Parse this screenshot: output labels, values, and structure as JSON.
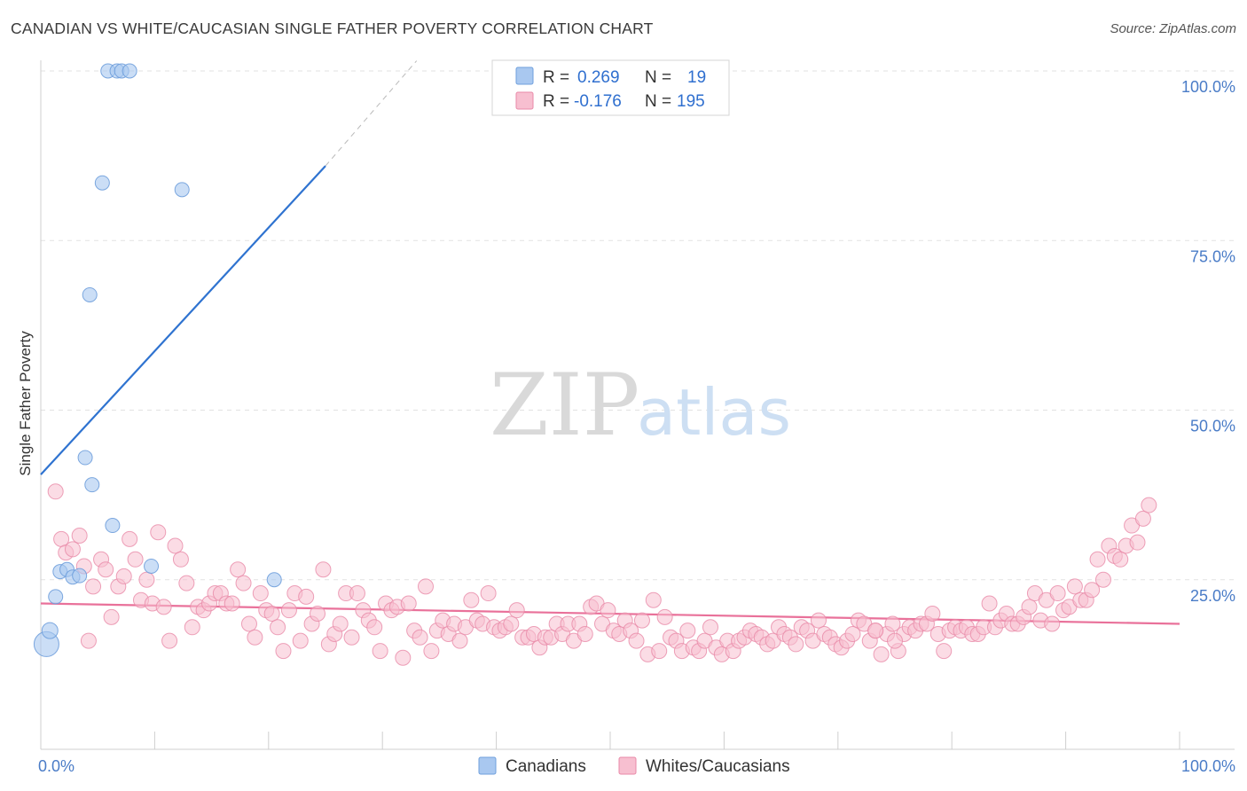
{
  "header": {
    "title": "CANADIAN VS WHITE/CAUCASIAN SINGLE FATHER POVERTY CORRELATION CHART",
    "source": "Source: ZipAtlas.com"
  },
  "watermark": {
    "zip": "ZIP",
    "atlas": "atlas"
  },
  "legend": {
    "rows": [
      {
        "r_label": "R =",
        "r_value": "0.269",
        "n_label": "N =",
        "n_value": "19",
        "color": "#a9c8f0",
        "stroke": "#6f9fdc"
      },
      {
        "r_label": "R =",
        "r_value": "-0.176",
        "n_label": "N =",
        "n_value": "195",
        "color": "#f7bfd0",
        "stroke": "#e98aa8"
      }
    ]
  },
  "bottom_legend": [
    {
      "label": "Canadians",
      "color": "#a9c8f0",
      "stroke": "#6f9fdc"
    },
    {
      "label": "Whites/Caucasians",
      "color": "#f7bfd0",
      "stroke": "#e98aa8"
    }
  ],
  "chart_data": {
    "type": "scatter",
    "title": "CANADIAN VS WHITE/CAUCASIAN SINGLE FATHER POVERTY CORRELATION CHART",
    "xlabel": "",
    "ylabel": "Single Father Poverty",
    "xlim": [
      0,
      100
    ],
    "ylim": [
      0,
      102
    ],
    "x_tick_labels": [
      "0.0%",
      "100.0%"
    ],
    "y_ticks": [
      {
        "value": 25,
        "label": "25.0%"
      },
      {
        "value": 50,
        "label": "50.0%"
      },
      {
        "value": 75,
        "label": "75.0%"
      },
      {
        "value": 100,
        "label": "100.0%"
      }
    ],
    "series": [
      {
        "name": "Canadians",
        "color": "#a9c8f0",
        "stroke": "#6f9fdc",
        "trend_color": "#2f73d0",
        "trend": {
          "x0": 0,
          "y0": 40.5,
          "x1": 25,
          "y1": 86,
          "dash_to_x": 33,
          "dash_to_y": 101.5
        },
        "points": [
          [
            0.5,
            15.5,
            14
          ],
          [
            0.8,
            17.5,
            9
          ],
          [
            1.3,
            22.5,
            8
          ],
          [
            1.7,
            26.2,
            8
          ],
          [
            2.3,
            26.5,
            8
          ],
          [
            2.8,
            25.4,
            8
          ],
          [
            3.4,
            25.6,
            8
          ],
          [
            3.9,
            43,
            8
          ],
          [
            4.5,
            39,
            8
          ],
          [
            4.3,
            67,
            8
          ],
          [
            5.4,
            83.5,
            8
          ],
          [
            6.3,
            33,
            8
          ],
          [
            5.9,
            100,
            8
          ],
          [
            6.7,
            100,
            8
          ],
          [
            7.1,
            100,
            8
          ],
          [
            7.8,
            100,
            8
          ],
          [
            9.7,
            27,
            8
          ],
          [
            12.4,
            82.5,
            8
          ],
          [
            20.5,
            25,
            8
          ]
        ]
      },
      {
        "name": "Whites/Caucasians",
        "color": "#f7bfd0",
        "stroke": "#e98aa8",
        "trend_color": "#e9719a",
        "trend": {
          "x0": 0,
          "y0": 21.5,
          "x1": 100,
          "y1": 18.5
        },
        "points": [
          [
            1.3,
            38
          ],
          [
            1.8,
            31
          ],
          [
            2.2,
            29
          ],
          [
            2.8,
            29.5
          ],
          [
            3.4,
            31.5
          ],
          [
            3.8,
            27
          ],
          [
            4.2,
            16
          ],
          [
            4.6,
            24
          ],
          [
            5.3,
            28
          ],
          [
            5.7,
            26.5
          ],
          [
            6.2,
            19.5
          ],
          [
            6.8,
            24
          ],
          [
            7.3,
            25.5
          ],
          [
            7.8,
            31
          ],
          [
            8.3,
            28
          ],
          [
            8.8,
            22
          ],
          [
            9.3,
            25
          ],
          [
            9.8,
            21.5
          ],
          [
            10.3,
            32
          ],
          [
            10.8,
            21
          ],
          [
            11.3,
            16
          ],
          [
            11.8,
            30
          ],
          [
            12.3,
            28
          ],
          [
            12.8,
            24.5
          ],
          [
            13.3,
            18
          ],
          [
            13.8,
            21
          ],
          [
            14.3,
            20.5
          ],
          [
            14.8,
            21.5
          ],
          [
            15.3,
            23
          ],
          [
            15.8,
            23
          ],
          [
            16.3,
            21.5
          ],
          [
            16.8,
            21.5
          ],
          [
            17.3,
            26.5
          ],
          [
            17.8,
            24.5
          ],
          [
            18.3,
            18.5
          ],
          [
            18.8,
            16.5
          ],
          [
            19.3,
            23
          ],
          [
            19.8,
            20.5
          ],
          [
            20.3,
            20
          ],
          [
            20.8,
            18
          ],
          [
            21.3,
            14.5
          ],
          [
            21.8,
            20.5
          ],
          [
            22.3,
            23
          ],
          [
            22.8,
            16
          ],
          [
            23.3,
            22.5
          ],
          [
            23.8,
            18.5
          ],
          [
            24.3,
            20
          ],
          [
            24.8,
            26.5
          ],
          [
            25.3,
            15.5
          ],
          [
            25.8,
            17
          ],
          [
            26.3,
            18.5
          ],
          [
            26.8,
            23
          ],
          [
            27.3,
            16.5
          ],
          [
            27.8,
            23
          ],
          [
            28.3,
            20.5
          ],
          [
            28.8,
            19
          ],
          [
            29.3,
            18
          ],
          [
            29.8,
            14.5
          ],
          [
            30.3,
            21.5
          ],
          [
            30.8,
            20.5
          ],
          [
            31.3,
            21
          ],
          [
            31.8,
            13.5
          ],
          [
            32.3,
            21.5
          ],
          [
            32.8,
            17.5
          ],
          [
            33.3,
            16.5
          ],
          [
            33.8,
            24
          ],
          [
            34.3,
            14.5
          ],
          [
            34.8,
            17.5
          ],
          [
            35.3,
            19
          ],
          [
            35.8,
            17
          ],
          [
            36.3,
            18.5
          ],
          [
            36.8,
            16
          ],
          [
            37.3,
            18
          ],
          [
            37.8,
            22
          ],
          [
            38.3,
            19
          ],
          [
            38.8,
            18.5
          ],
          [
            39.3,
            23
          ],
          [
            39.8,
            18
          ],
          [
            40.3,
            17.5
          ],
          [
            40.8,
            18
          ],
          [
            41.3,
            18.5
          ],
          [
            41.8,
            20.5
          ],
          [
            42.3,
            16.5
          ],
          [
            42.8,
            16.5
          ],
          [
            43.3,
            17
          ],
          [
            43.8,
            15
          ],
          [
            44.3,
            16.5
          ],
          [
            44.8,
            16.5
          ],
          [
            45.3,
            18.5
          ],
          [
            45.8,
            17
          ],
          [
            46.3,
            18.5
          ],
          [
            46.8,
            16
          ],
          [
            47.3,
            18.5
          ],
          [
            47.8,
            17
          ],
          [
            48.3,
            21
          ],
          [
            48.8,
            21.5
          ],
          [
            49.3,
            18.5
          ],
          [
            49.8,
            20.5
          ],
          [
            50.3,
            17.5
          ],
          [
            50.8,
            17
          ],
          [
            51.3,
            19
          ],
          [
            51.8,
            17.5
          ],
          [
            52.3,
            16
          ],
          [
            52.8,
            19
          ],
          [
            53.3,
            14
          ],
          [
            53.8,
            22
          ],
          [
            54.3,
            14.5
          ],
          [
            54.8,
            19.5
          ],
          [
            55.3,
            16.5
          ],
          [
            55.8,
            16
          ],
          [
            56.3,
            14.5
          ],
          [
            56.8,
            17.5
          ],
          [
            57.3,
            15
          ],
          [
            57.8,
            14.5
          ],
          [
            58.3,
            16
          ],
          [
            58.8,
            18
          ],
          [
            59.3,
            15
          ],
          [
            59.8,
            14
          ],
          [
            60.3,
            16
          ],
          [
            60.8,
            14.5
          ],
          [
            61.3,
            16
          ],
          [
            61.8,
            16.5
          ],
          [
            62.3,
            17.5
          ],
          [
            62.8,
            17
          ],
          [
            63.3,
            16.5
          ],
          [
            63.8,
            15.5
          ],
          [
            64.3,
            16
          ],
          [
            64.8,
            18
          ],
          [
            65.3,
            17
          ],
          [
            65.8,
            16.5
          ],
          [
            66.3,
            15.5
          ],
          [
            66.8,
            18
          ],
          [
            67.3,
            17.5
          ],
          [
            67.8,
            16
          ],
          [
            68.3,
            19
          ],
          [
            68.8,
            17
          ],
          [
            69.3,
            16.5
          ],
          [
            69.8,
            15.5
          ],
          [
            70.3,
            15
          ],
          [
            70.8,
            16
          ],
          [
            71.3,
            17
          ],
          [
            71.8,
            19
          ],
          [
            72.3,
            18.5
          ],
          [
            72.8,
            16
          ],
          [
            73.3,
            17.5
          ],
          [
            73.8,
            14
          ],
          [
            74.3,
            17
          ],
          [
            74.8,
            18.5
          ],
          [
            75.3,
            14.5
          ],
          [
            75.8,
            17
          ],
          [
            76.3,
            18
          ],
          [
            76.8,
            17.5
          ],
          [
            77.3,
            18.5
          ],
          [
            77.8,
            18.5
          ],
          [
            78.3,
            20
          ],
          [
            78.8,
            17
          ],
          [
            79.3,
            14.5
          ],
          [
            79.8,
            17.5
          ],
          [
            80.3,
            18
          ],
          [
            80.8,
            17.5
          ],
          [
            81.3,
            18
          ],
          [
            81.8,
            17
          ],
          [
            82.3,
            17
          ],
          [
            82.8,
            18
          ],
          [
            73.3,
            17.5
          ],
          [
            75,
            16
          ],
          [
            83.3,
            21.5
          ],
          [
            83.8,
            18
          ],
          [
            84.3,
            19
          ],
          [
            84.8,
            20
          ],
          [
            85.3,
            18.5
          ],
          [
            85.8,
            18.5
          ],
          [
            86.3,
            19.5
          ],
          [
            86.8,
            21
          ],
          [
            87.3,
            23
          ],
          [
            87.8,
            19
          ],
          [
            88.3,
            22
          ],
          [
            88.8,
            18.5
          ],
          [
            89.3,
            23
          ],
          [
            89.8,
            20.5
          ],
          [
            90.3,
            21
          ],
          [
            90.8,
            24
          ],
          [
            91.3,
            22
          ],
          [
            91.8,
            22
          ],
          [
            92.3,
            23.5
          ],
          [
            92.8,
            28
          ],
          [
            93.3,
            25
          ],
          [
            93.8,
            30
          ],
          [
            94.3,
            28.5
          ],
          [
            94.8,
            28
          ],
          [
            95.3,
            30
          ],
          [
            95.8,
            33
          ],
          [
            96.3,
            30.5
          ],
          [
            96.8,
            34
          ],
          [
            97.3,
            36
          ]
        ]
      }
    ]
  }
}
